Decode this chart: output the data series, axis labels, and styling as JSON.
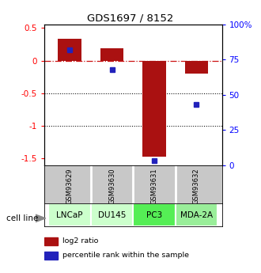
{
  "title": "GDS1697 / 8152",
  "samples": [
    "GSM93629",
    "GSM93630",
    "GSM93631",
    "GSM93632"
  ],
  "cell_lines": [
    "LNCaP",
    "DU145",
    "PC3",
    "MDA-2A"
  ],
  "cell_line_colors": [
    "#ccffcc",
    "#ccffcc",
    "#55ee55",
    "#99ee99"
  ],
  "log2_ratios": [
    0.33,
    0.19,
    -1.47,
    -0.2
  ],
  "percentile_ranks": [
    82,
    68,
    3,
    43
  ],
  "ylim_left": [
    -1.6,
    0.55
  ],
  "ylim_right": [
    0,
    100
  ],
  "bar_color": "#aa1111",
  "dot_color": "#2222bb",
  "zero_line_color": "#cc1111",
  "left_ticks": [
    0.5,
    0,
    -0.5,
    -1.0,
    -1.5
  ],
  "right_ticks": [
    100,
    75,
    50,
    25,
    0
  ],
  "left_tick_labels": [
    "0.5",
    "0",
    "-0.5",
    "-1",
    "-1.5"
  ],
  "right_tick_labels": [
    "100%",
    "75",
    "50",
    "25",
    "0"
  ]
}
